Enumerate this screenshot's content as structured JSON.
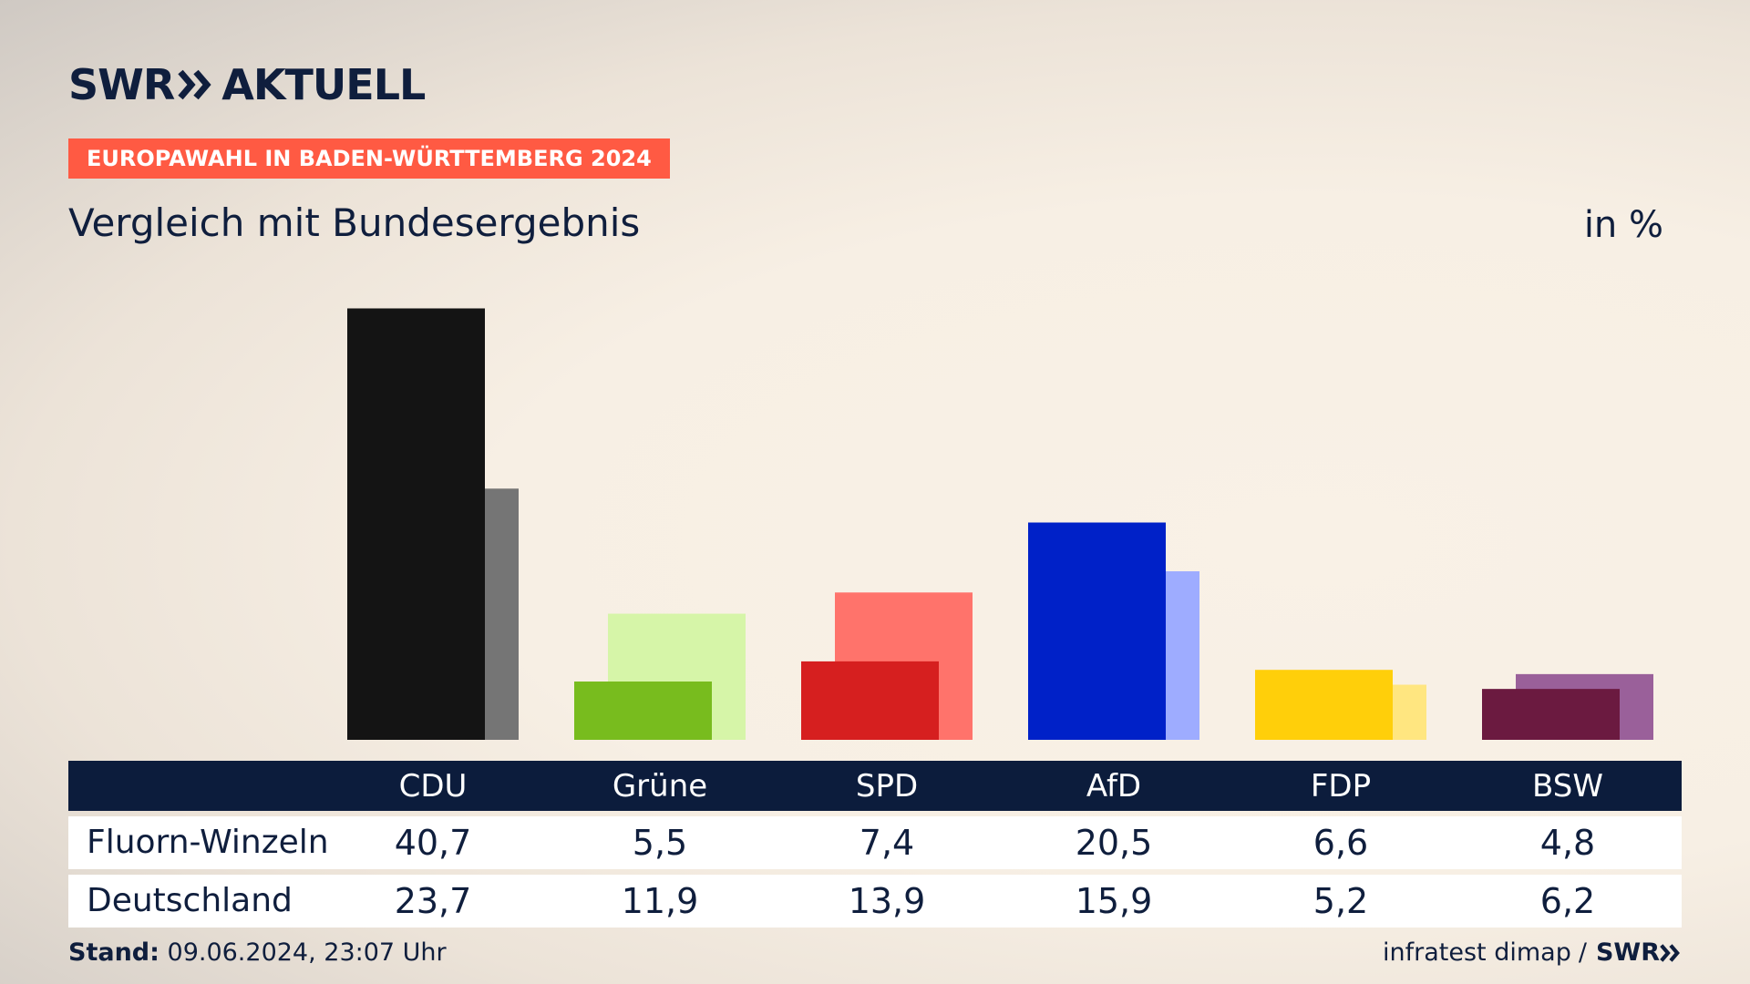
{
  "brand": {
    "logo_left": "SWR",
    "logo_right": "AKTUELL",
    "footer_logo": "SWR"
  },
  "tag": "EUROPAWAHL IN BADEN-WÜRTTEMBERG 2024",
  "subtitle": "Vergleich mit Bundesergebnis",
  "unit": "in %",
  "footer": {
    "stand_label": "Stand:",
    "stand_value": "09.06.2024, 23:07 Uhr",
    "source": "infratest dimap",
    "separator": "/"
  },
  "chart_data": {
    "type": "bar",
    "categories": [
      "CDU",
      "Grüne",
      "SPD",
      "AfD",
      "FDP",
      "BSW"
    ],
    "series": [
      {
        "name": "Fluorn-Winzeln",
        "values": [
          40.7,
          5.5,
          7.4,
          20.5,
          6.6,
          4.8
        ],
        "colors": [
          "#141414",
          "#78bc1e",
          "#d61f1f",
          "#0021c8",
          "#ffcf0a",
          "#6b1a40"
        ]
      },
      {
        "name": "Deutschland",
        "values": [
          23.7,
          11.9,
          13.9,
          15.9,
          5.2,
          6.2
        ],
        "colors": [
          "#757575",
          "#d6f5a8",
          "#ff736b",
          "#9eacff",
          "#ffe680",
          "#9a609a"
        ]
      }
    ],
    "ylim": [
      0,
      41
    ],
    "grid": false,
    "table": {
      "rows": [
        {
          "label": "Fluorn-Winzeln",
          "values": [
            "40,7",
            "5,5",
            "7,4",
            "20,5",
            "6,6",
            "4,8"
          ]
        },
        {
          "label": "Deutschland",
          "values": [
            "23,7",
            "11,9",
            "13,9",
            "15,9",
            "5,2",
            "6,2"
          ]
        }
      ]
    }
  }
}
